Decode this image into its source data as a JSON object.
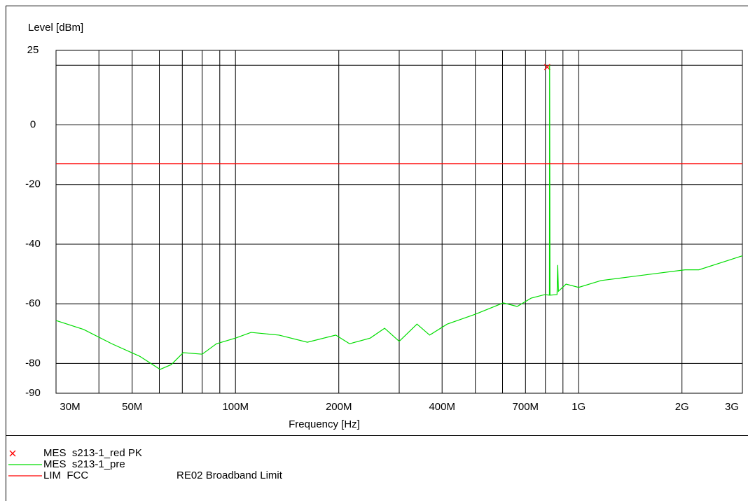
{
  "chart_data": {
    "type": "line",
    "xlabel": "Frequency [Hz]",
    "ylabel": "Level [dBm]",
    "xscale": "log",
    "xlim": [
      30000000,
      3000000000
    ],
    "ylim": [
      -90,
      25
    ],
    "xticks": [
      {
        "value": 30000000,
        "label": "30M"
      },
      {
        "value": 50000000,
        "label": "50M"
      },
      {
        "value": 100000000,
        "label": "100M"
      },
      {
        "value": 200000000,
        "label": "200M"
      },
      {
        "value": 400000000,
        "label": "400M"
      },
      {
        "value": 700000000,
        "label": "700M"
      },
      {
        "value": 1000000000,
        "label": "1G"
      },
      {
        "value": 2000000000,
        "label": "2G"
      },
      {
        "value": 3000000000,
        "label": "3G"
      }
    ],
    "yticks": [
      25,
      0,
      -20,
      -40,
      -60,
      -80,
      -90
    ],
    "xgrid": [
      40000000,
      50000000,
      60000000,
      70000000,
      80000000,
      90000000,
      100000000,
      200000000,
      300000000,
      400000000,
      500000000,
      600000000,
      700000000,
      800000000,
      900000000,
      1000000000,
      2000000000
    ],
    "ygrid": [
      20,
      0,
      -20,
      -40,
      -60,
      -80
    ],
    "grid": true,
    "series": [
      {
        "name": "MES  s213-1_red PK",
        "color": "#ff0000",
        "style": "marker",
        "x": [
          810000000
        ],
        "values": [
          19.4
        ]
      },
      {
        "name": "MES  s213-1_pre",
        "color": "#00dd00",
        "style": "line",
        "x": [
          30000000,
          36100000,
          43600000,
          52600000,
          60300000,
          65000000,
          70400000,
          80000000,
          88000000,
          100000000,
          111000000,
          134000000,
          162000000,
          196000000,
          215000000,
          247000000,
          272000000,
          300000000,
          338000000,
          368000000,
          414000000,
          500000000,
          603000000,
          662000000,
          727000000,
          798000000,
          822000000,
          823000000,
          825000000,
          865000000,
          869000000,
          873000000,
          919000000,
          1000000000,
          1162000000,
          1402000000,
          1691000000,
          2040000000,
          2240000000,
          2700000000,
          3000000000
        ],
        "values": [
          -65.6,
          -68.6,
          -73.4,
          -77.6,
          -82,
          -80.4,
          -76.4,
          -76.9,
          -73.4,
          -71.5,
          -69.6,
          -70.5,
          -72.9,
          -70.5,
          -73.4,
          -71.5,
          -68.2,
          -72.6,
          -66.8,
          -70.5,
          -66.8,
          -63.5,
          -59.7,
          -60.9,
          -58.1,
          -56.9,
          -57.1,
          20,
          -57.1,
          -56.9,
          -47,
          -55.8,
          -53.4,
          -54.5,
          -52.2,
          -51,
          -49.8,
          -48.6,
          -48.6,
          -45.6,
          -43.9
        ]
      },
      {
        "name": "LIM  FCC",
        "description": "RE02 Broadband Limit",
        "color": "#ff0000",
        "style": "line",
        "x": [
          30000000,
          3000000000
        ],
        "values": [
          -13,
          -13
        ]
      }
    ]
  }
}
